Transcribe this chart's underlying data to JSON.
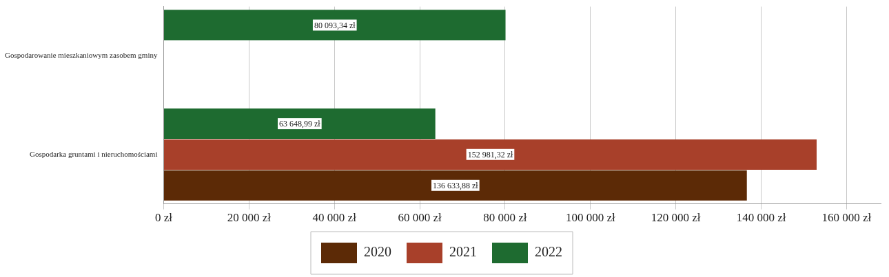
{
  "chart_data": {
    "type": "bar",
    "orientation": "horizontal",
    "categories": [
      "Gospodarowanie mieszkaniowym zasobem gminy",
      "Gospodarka gruntami i nieruchomościami"
    ],
    "series": [
      {
        "name": "2020",
        "color": "#5c2a06",
        "values": [
          null,
          136633.88
        ],
        "value_labels": [
          null,
          "136 633,88 zł"
        ]
      },
      {
        "name": "2021",
        "color": "#a8402a",
        "values": [
          null,
          152981.32
        ],
        "value_labels": [
          null,
          "152 981,32 zł"
        ]
      },
      {
        "name": "2022",
        "color": "#1e6b30",
        "values": [
          80093.34,
          63648.99
        ],
        "value_labels": [
          "80 093,34 zł",
          "63 648,99 zł"
        ]
      }
    ],
    "xlim": [
      0,
      168000
    ],
    "xticks": [
      {
        "value": 0,
        "label": "0 zł"
      },
      {
        "value": 20000,
        "label": "20 000 zł"
      },
      {
        "value": 40000,
        "label": "40 000 zł"
      },
      {
        "value": 60000,
        "label": "60 000 zł"
      },
      {
        "value": 80000,
        "label": "80 000 zł"
      },
      {
        "value": 100000,
        "label": "100 000 zł"
      },
      {
        "value": 120000,
        "label": "120 000 zł"
      },
      {
        "value": 140000,
        "label": "140 000 zł"
      },
      {
        "value": 160000,
        "label": "160 000 zł"
      }
    ],
    "grid": "x",
    "legend": "bottom"
  }
}
